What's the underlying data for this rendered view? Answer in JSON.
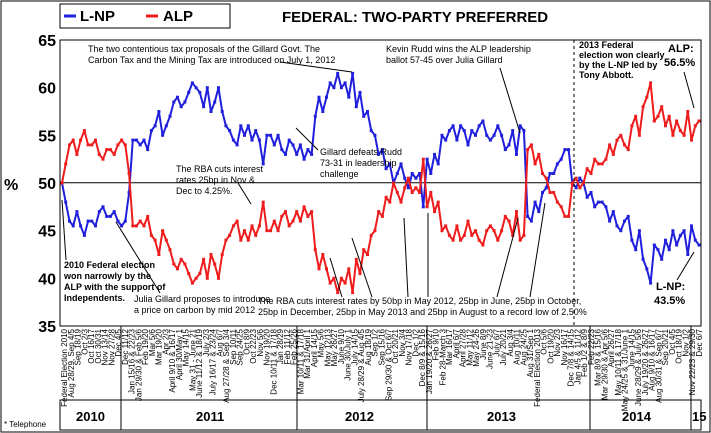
{
  "chart_data": {
    "type": "line",
    "title": "FEDERAL: TWO-PARTY PREFERRED",
    "ylabel": "%",
    "ylim": [
      35,
      65
    ],
    "yticks": [
      35,
      40,
      45,
      50,
      55,
      60,
      65
    ],
    "footnote": "* Telephone",
    "end_labels": {
      "alp": "ALP:",
      "alp_value": "56.5%",
      "lnp": "L-NP:",
      "lnp_value": "43.5%"
    },
    "series": [
      {
        "name": "L-NP",
        "color": "#1f1fdc",
        "values": [
          50,
          48,
          46,
          45.5,
          47,
          45.5,
          44.5,
          46,
          46,
          45.5,
          47,
          47.5,
          46.5,
          46.5,
          47,
          46,
          45.5,
          46,
          49,
          54.5,
          54.5,
          54,
          54.5,
          53.5,
          55.5,
          56,
          57.5,
          55,
          56,
          57,
          58.5,
          59,
          58,
          58.5,
          59.5,
          60.5,
          60,
          59.5,
          58,
          60,
          57.5,
          58.5,
          60,
          57.5,
          56,
          55.5,
          54.5,
          54,
          56,
          55,
          56,
          54.5,
          55.5,
          54.5,
          52,
          55,
          55,
          54,
          55,
          53.5,
          53,
          54.5,
          54,
          53,
          54,
          52.5,
          53.5,
          53,
          57,
          59,
          57.5,
          59,
          60.5,
          60,
          61.5,
          60,
          60.5,
          59,
          61.5,
          58,
          59.5,
          57,
          57.5,
          55.5,
          55,
          53,
          53.5,
          51.5,
          52,
          50,
          51,
          52,
          50.5,
          49.5,
          51,
          50.5,
          51,
          47.5,
          52.5,
          51,
          53,
          52,
          55,
          54.5,
          55.5,
          56,
          54.5,
          56,
          55.5,
          54,
          55.5,
          55,
          56,
          56.5,
          55,
          54.5,
          55,
          56,
          55,
          53.5,
          54,
          55.5,
          53,
          56,
          55.5,
          46.5,
          46,
          48,
          47,
          49,
          49.5,
          51,
          51,
          52,
          52.5,
          53.5,
          53.5,
          50,
          49.5,
          50.5,
          50,
          48.5,
          49,
          47.5,
          48,
          48,
          47.5,
          46,
          47,
          45.5,
          45,
          46,
          46.5,
          44,
          43,
          45,
          42,
          41,
          39.5,
          43.5,
          43,
          42,
          44,
          43,
          45,
          43.5,
          44.5,
          45,
          42.5,
          45.5,
          44,
          43.5
        ]
      },
      {
        "name": "ALP",
        "color": "#ee1c1c",
        "values": [
          50,
          52,
          54,
          54.5,
          53,
          54.5,
          55.5,
          54,
          54,
          54.5,
          53,
          52.5,
          53.5,
          53.5,
          53,
          54,
          54.5,
          54,
          51,
          45.5,
          45.5,
          46,
          45.5,
          46.5,
          44.5,
          44,
          42.5,
          45,
          44,
          43,
          41.5,
          41,
          42,
          41.5,
          40.5,
          39.5,
          40,
          40.5,
          42,
          40,
          42.5,
          41.5,
          40,
          42.5,
          44,
          44.5,
          45.5,
          46,
          44,
          45,
          44,
          45.5,
          44.5,
          45.5,
          48,
          45,
          45,
          46,
          45,
          46.5,
          47,
          45.5,
          46,
          47,
          46,
          47.5,
          46.5,
          47,
          43,
          41,
          42.5,
          41,
          39.5,
          40,
          38.5,
          40,
          39.5,
          41,
          38.5,
          42,
          40.5,
          43,
          42.5,
          44.5,
          45,
          47,
          46.5,
          48.5,
          48,
          50,
          49,
          48,
          49.5,
          50.5,
          49,
          49.5,
          49,
          52.5,
          47.5,
          49,
          47,
          48,
          45,
          45.5,
          44.5,
          44,
          45.5,
          44,
          44.5,
          46,
          44.5,
          45,
          44,
          43.5,
          45,
          45.5,
          45,
          44,
          45,
          46.5,
          46,
          44.5,
          47,
          44,
          44.5,
          53.5,
          54,
          52,
          53,
          51,
          50.5,
          49,
          49,
          48,
          47.5,
          46.5,
          46.5,
          50,
          50.5,
          49.5,
          50,
          51.5,
          51,
          52.5,
          52,
          52,
          52.5,
          54,
          53,
          54.5,
          55,
          54,
          53.5,
          56,
          57,
          55,
          58,
          59,
          60.5,
          56.5,
          57,
          58,
          56,
          57,
          55,
          56.5,
          55.5,
          55,
          57.5,
          54.5,
          56,
          56.5
        ]
      }
    ],
    "legend": [
      "L-NP",
      "ALP"
    ],
    "year_labels": [
      "2010",
      "2011",
      "2012",
      "2013",
      "2014",
      "15"
    ],
    "x_labels": [
      "Federal Election 2010",
      "Aug 28/29, Sep 4/5",
      "Sep 18/19",
      "Oct 2/3",
      "Oct 16/17",
      "Oct 30/31",
      "Nov 13/14",
      "Nov 27/28",
      "Dec 4/5",
      "Dec 11/12",
      "Jan 15/16 & 22/23",
      "Jan 29/30 & Feb 5/6",
      "Feb 19/20",
      "Mar 5/6",
      "Mar 19/20",
      "Apr 2/3",
      "April 9/10 & 16/17",
      "April 30/May 1",
      "May 14/15",
      "May 31 - June 21",
      "June 11/12 & 18/19",
      "July 2/3",
      "July 16/17 & 23/24",
      "Aug 6/7",
      "Aug 27/28 & Sep 3/4",
      "Sep 10/11",
      "Sep 24/25",
      "Oct 8/9",
      "Oct 22/23",
      "Nov 5/6",
      "Nov 19/20",
      "Dec 10/11 & 17/18",
      "Jan 28/29",
      "Feb 11/12",
      "Feb 25/26",
      "Mar 10/11 & 17/18",
      "Mar 31/April 1",
      "April 14/15",
      "May 5/6",
      "May 12/13",
      "May 26/27",
      "June 9/10",
      "June 30/July 1",
      "July 14/15",
      "July 28/29 & Aug 4/5",
      "Aug 18/19",
      "Sep 1/2",
      "Sep 15/16",
      "Sep 29/30 & Oct 6/7",
      "Oct 20/21",
      "Nov 3/4",
      "Nov 17/18",
      "Dec 1/2",
      "Dec 8/9 & 15/16",
      "Jan 19/20 & 26/27",
      "Feb 9/10",
      "Feb 28-March 3",
      "Mar 16/17",
      "April 6/7",
      "April 27/28",
      "May 11/12",
      "May 24-26",
      "June 8/9",
      "June 21-23",
      "July 6/7",
      "July 20/21",
      "Aug 3/4",
      "Aug 10/11",
      "Aug 24/25",
      "Aug 31/Sep 1",
      "Federal Election 2013",
      "Oct 5/6",
      "Oct 19/20",
      "Nov 2/3",
      "Nov 16/17",
      "Dec 7/8 & 14/15",
      "Jan 4/5 & 11/12",
      "Feb 1/2 & 8/9",
      "Feb 22/23",
      "Mar 8/9 & 15/16",
      "Mar 29/30 & Apr 5/6",
      "April 26/27",
      "May 10/11 & 17/18",
      "May 24/25 & 31/June 1",
      "June 14/15",
      "June 28/29 & July 5/6",
      "July 19/20 & 26/27",
      "Aug 9/10 & 16/17",
      "Aug 30/31 & Sep 6/7",
      "Sep 20/21",
      "Oct 4/5",
      "Oct 18/19",
      "Nov 1/2",
      "Nov 22/23 & 29/30",
      "Dec 6/7"
    ],
    "annotations": {
      "a1": [
        "2010 Federal election",
        "won narrowly by the",
        "ALP with the support of",
        "Independents."
      ],
      "a2": [
        "Julia Gillard proposes to introduce",
        "a price on carbon by mid 2012"
      ],
      "a3": [
        "The two contentious tax proposals of the Gillard Govt. The",
        "Carbon Tax and the Mining Tax are introduced on July 1, 2012"
      ],
      "a4": [
        "The RBA cuts interest",
        "rates 25bp in Nov &",
        "Dec to 4.25%."
      ],
      "a5": [
        "Gillard defeats Rudd",
        "73-31 in leadership",
        "challenge"
      ],
      "a6": [
        "Kevin Rudd wins the ALP leadership",
        "ballot 57-45 over Julia Gillard"
      ],
      "a7": [
        "2013 Federal",
        "election won clearly",
        "by the L-NP led by",
        "Tony Abbott."
      ],
      "a8": [
        "The RBA cuts interest rates by 50bp in May 2012, 25bp in June, 25bp in October,",
        "25bp in December, 25bp in May 2013 and 25bp in August to a record low of 2.50%"
      ]
    }
  }
}
